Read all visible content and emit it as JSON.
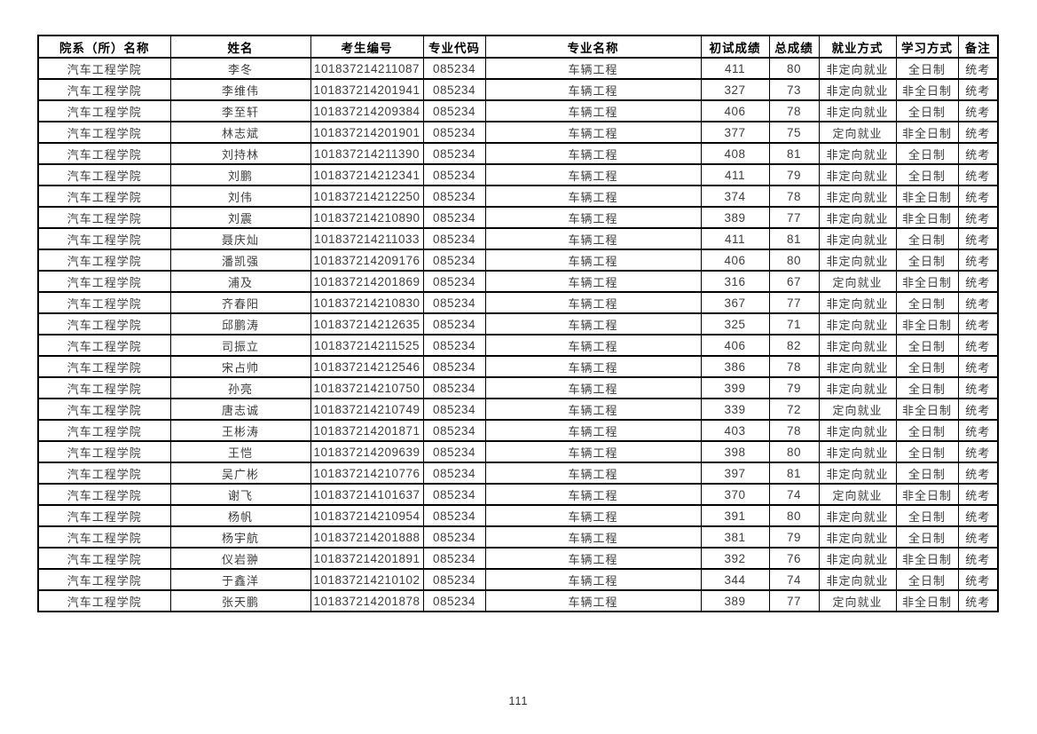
{
  "document": {
    "page_number": "111"
  },
  "colors": {
    "background": "#ffffff",
    "border": "#000000",
    "header_text": "#000000",
    "cell_text": "#3d3d3d"
  },
  "table": {
    "columns": [
      "院系（所）名称",
      "姓名",
      "考生编号",
      "专业代码",
      "专业名称",
      "初试成绩",
      "总成绩",
      "就业方式",
      "学习方式",
      "备注"
    ],
    "rows": [
      [
        "汽车工程学院",
        "李冬",
        "101837214211087",
        "085234",
        "车辆工程",
        "411",
        "80",
        "非定向就业",
        "全日制",
        "统考"
      ],
      [
        "汽车工程学院",
        "李维伟",
        "101837214201941",
        "085234",
        "车辆工程",
        "327",
        "73",
        "非定向就业",
        "非全日制",
        "统考"
      ],
      [
        "汽车工程学院",
        "李至轩",
        "101837214209384",
        "085234",
        "车辆工程",
        "406",
        "78",
        "非定向就业",
        "全日制",
        "统考"
      ],
      [
        "汽车工程学院",
        "林志斌",
        "101837214201901",
        "085234",
        "车辆工程",
        "377",
        "75",
        "定向就业",
        "非全日制",
        "统考"
      ],
      [
        "汽车工程学院",
        "刘持林",
        "101837214211390",
        "085234",
        "车辆工程",
        "408",
        "81",
        "非定向就业",
        "全日制",
        "统考"
      ],
      [
        "汽车工程学院",
        "刘鹏",
        "101837214212341",
        "085234",
        "车辆工程",
        "411",
        "79",
        "非定向就业",
        "全日制",
        "统考"
      ],
      [
        "汽车工程学院",
        "刘伟",
        "101837214212250",
        "085234",
        "车辆工程",
        "374",
        "78",
        "非定向就业",
        "非全日制",
        "统考"
      ],
      [
        "汽车工程学院",
        "刘震",
        "101837214210890",
        "085234",
        "车辆工程",
        "389",
        "77",
        "非定向就业",
        "非全日制",
        "统考"
      ],
      [
        "汽车工程学院",
        "聂庆灿",
        "101837214211033",
        "085234",
        "车辆工程",
        "411",
        "81",
        "非定向就业",
        "全日制",
        "统考"
      ],
      [
        "汽车工程学院",
        "潘凯强",
        "101837214209176",
        "085234",
        "车辆工程",
        "406",
        "80",
        "非定向就业",
        "全日制",
        "统考"
      ],
      [
        "汽车工程学院",
        "浦及",
        "101837214201869",
        "085234",
        "车辆工程",
        "316",
        "67",
        "定向就业",
        "非全日制",
        "统考"
      ],
      [
        "汽车工程学院",
        "齐春阳",
        "101837214210830",
        "085234",
        "车辆工程",
        "367",
        "77",
        "非定向就业",
        "全日制",
        "统考"
      ],
      [
        "汽车工程学院",
        "邱鹏涛",
        "101837214212635",
        "085234",
        "车辆工程",
        "325",
        "71",
        "非定向就业",
        "非全日制",
        "统考"
      ],
      [
        "汽车工程学院",
        "司振立",
        "101837214211525",
        "085234",
        "车辆工程",
        "406",
        "82",
        "非定向就业",
        "全日制",
        "统考"
      ],
      [
        "汽车工程学院",
        "宋占帅",
        "101837214212546",
        "085234",
        "车辆工程",
        "386",
        "78",
        "非定向就业",
        "全日制",
        "统考"
      ],
      [
        "汽车工程学院",
        "孙亮",
        "101837214210750",
        "085234",
        "车辆工程",
        "399",
        "79",
        "非定向就业",
        "全日制",
        "统考"
      ],
      [
        "汽车工程学院",
        "唐志诚",
        "101837214210749",
        "085234",
        "车辆工程",
        "339",
        "72",
        "定向就业",
        "非全日制",
        "统考"
      ],
      [
        "汽车工程学院",
        "王彬涛",
        "101837214201871",
        "085234",
        "车辆工程",
        "403",
        "78",
        "非定向就业",
        "全日制",
        "统考"
      ],
      [
        "汽车工程学院",
        "王恺",
        "101837214209639",
        "085234",
        "车辆工程",
        "398",
        "80",
        "非定向就业",
        "全日制",
        "统考"
      ],
      [
        "汽车工程学院",
        "吴广彬",
        "101837214210776",
        "085234",
        "车辆工程",
        "397",
        "81",
        "非定向就业",
        "全日制",
        "统考"
      ],
      [
        "汽车工程学院",
        "谢飞",
        "101837214101637",
        "085234",
        "车辆工程",
        "370",
        "74",
        "定向就业",
        "非全日制",
        "统考"
      ],
      [
        "汽车工程学院",
        "杨帆",
        "101837214210954",
        "085234",
        "车辆工程",
        "391",
        "80",
        "非定向就业",
        "全日制",
        "统考"
      ],
      [
        "汽车工程学院",
        "杨宇航",
        "101837214201888",
        "085234",
        "车辆工程",
        "381",
        "79",
        "非定向就业",
        "全日制",
        "统考"
      ],
      [
        "汽车工程学院",
        "仪岩翀",
        "101837214201891",
        "085234",
        "车辆工程",
        "392",
        "76",
        "非定向就业",
        "非全日制",
        "统考"
      ],
      [
        "汽车工程学院",
        "于鑫洋",
        "101837214210102",
        "085234",
        "车辆工程",
        "344",
        "74",
        "非定向就业",
        "全日制",
        "统考"
      ],
      [
        "汽车工程学院",
        "张天鹏",
        "101837214201878",
        "085234",
        "车辆工程",
        "389",
        "77",
        "定向就业",
        "非全日制",
        "统考"
      ]
    ]
  }
}
